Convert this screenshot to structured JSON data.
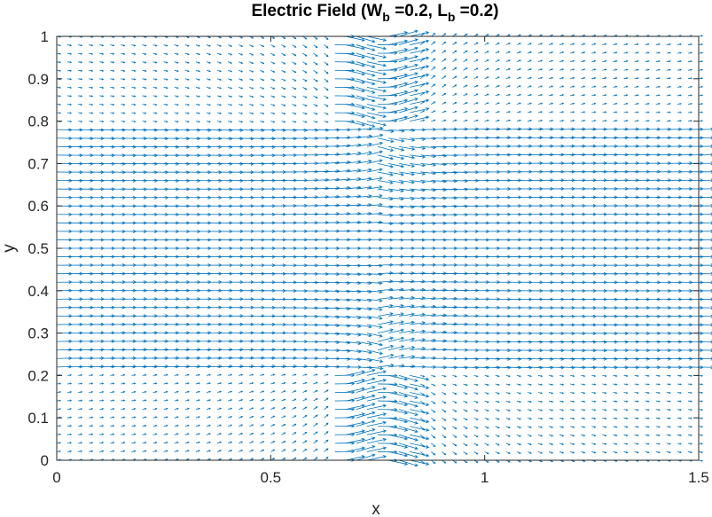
{
  "chart_data": {
    "type": "quiver",
    "title": {
      "prefix": "Electric Field (W",
      "sub1": "b",
      "mid": " =0.2, L",
      "sub2": "b",
      "suffix": " =0.2)"
    },
    "xlabel": "x",
    "ylabel": "y",
    "xlim": [
      0,
      1.5
    ],
    "ylim": [
      0,
      1
    ],
    "x_ticks": [
      0,
      0.5,
      1,
      1.5
    ],
    "x_tick_labels": [
      "0",
      "0.5",
      "1",
      "1.5"
    ],
    "y_ticks": [
      0,
      0.1,
      0.2,
      0.3,
      0.4,
      0.5,
      0.6,
      0.7,
      0.8,
      0.9,
      1
    ],
    "y_tick_labels": [
      "0",
      "0.1",
      "0.2",
      "0.3",
      "0.4",
      "0.5",
      "0.6",
      "0.7",
      "0.8",
      "0.9",
      "1"
    ],
    "grid": false,
    "box": true,
    "field": {
      "description_grid": {
        "nx": 61,
        "ny": 51
      },
      "bottleneck_regions": [
        {
          "x_range": [
            0.65,
            0.85
          ],
          "y_range": [
            0.8,
            1.0
          ]
        },
        {
          "x_range": [
            0.65,
            0.85
          ],
          "y_range": [
            0.0,
            0.2
          ]
        }
      ],
      "dominant_direction": "positive-x"
    },
    "colors": {
      "arrows": "#0072BD",
      "axes": "#262626"
    }
  }
}
